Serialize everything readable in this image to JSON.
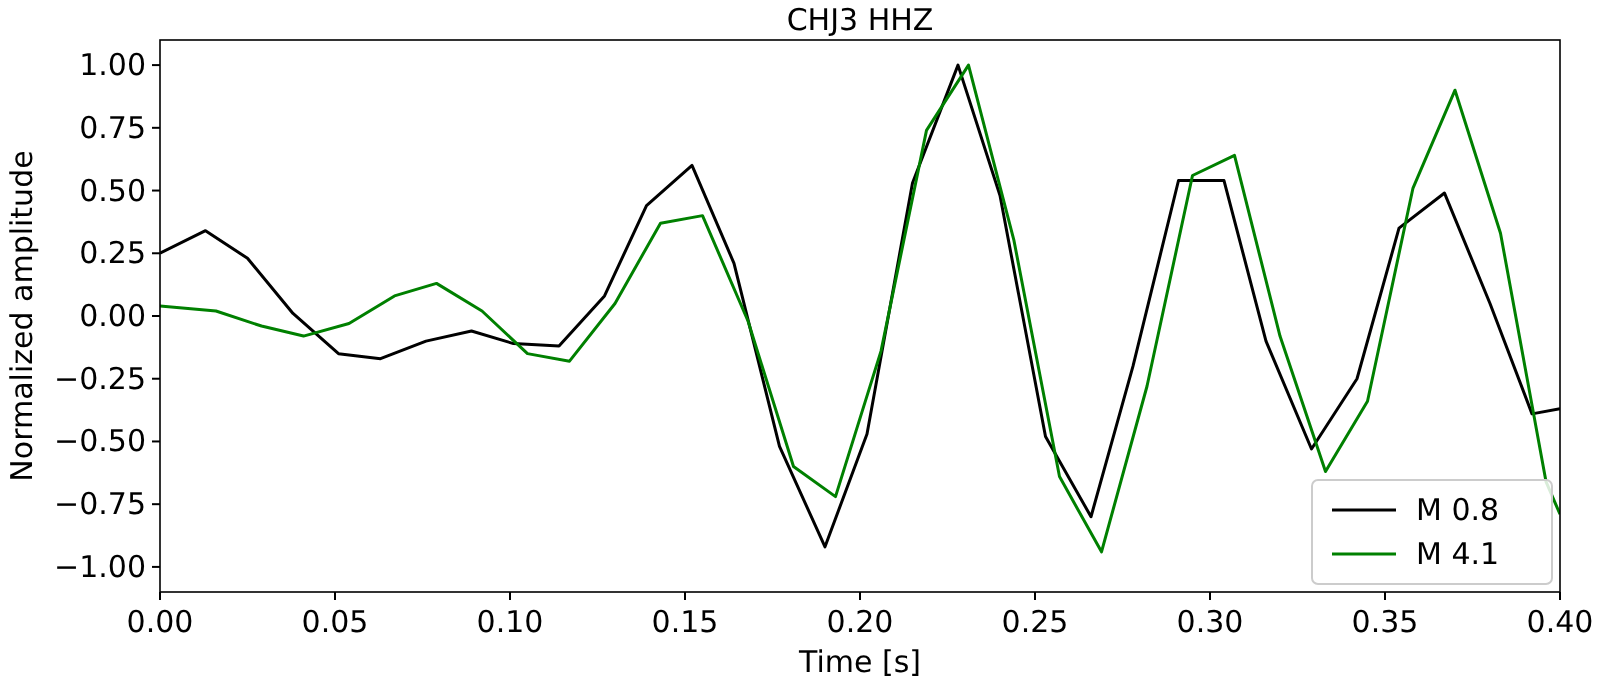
{
  "chart_data": {
    "type": "line",
    "title": "CHJ3 HHZ",
    "xlabel": "Time [s]",
    "ylabel": "Normalized amplitude",
    "xlim": [
      0,
      0.4
    ],
    "ylim": [
      -1.1,
      1.1
    ],
    "xticks": [
      {
        "value": 0,
        "label": "0.00"
      },
      {
        "value": 0.05,
        "label": "0.05"
      },
      {
        "value": 0.1,
        "label": "0.10"
      },
      {
        "value": 0.15,
        "label": "0.15"
      },
      {
        "value": 0.2,
        "label": "0.20"
      },
      {
        "value": 0.25,
        "label": "0.25"
      },
      {
        "value": 0.3,
        "label": "0.30"
      },
      {
        "value": 0.35,
        "label": "0.35"
      },
      {
        "value": 0.4,
        "label": "0.40"
      }
    ],
    "yticks": [
      {
        "value": -1,
        "label": "−1.00"
      },
      {
        "value": -0.75,
        "label": "−0.75"
      },
      {
        "value": -0.5,
        "label": "−0.50"
      },
      {
        "value": -0.25,
        "label": "−0.25"
      },
      {
        "value": 0,
        "label": "0.00"
      },
      {
        "value": 0.25,
        "label": "0.25"
      },
      {
        "value": 0.5,
        "label": "0.50"
      },
      {
        "value": 0.75,
        "label": "0.75"
      },
      {
        "value": 1,
        "label": "1.00"
      }
    ],
    "grid": false,
    "legend": "bottom right",
    "line_style": "solid",
    "marker": "none",
    "series": [
      {
        "name": "M 0.8",
        "color": "#000000",
        "x": [
          0,
          0.013,
          0.025,
          0.038,
          0.051,
          0.063,
          0.076,
          0.089,
          0.101,
          0.114,
          0.127,
          0.139,
          0.152,
          0.164,
          0.177,
          0.19,
          0.202,
          0.215,
          0.228,
          0.24,
          0.253,
          0.266,
          0.278,
          0.291,
          0.304,
          0.316,
          0.329,
          0.342,
          0.354,
          0.367,
          0.38,
          0.392,
          0.4
        ],
        "values": [
          0.25,
          0.34,
          0.23,
          0.01,
          -0.15,
          -0.17,
          -0.1,
          -0.06,
          -0.11,
          -0.12,
          0.08,
          0.44,
          0.6,
          0.21,
          -0.52,
          -0.92,
          -0.47,
          0.53,
          1.0,
          0.48,
          -0.48,
          -0.8,
          -0.2,
          0.54,
          0.54,
          -0.1,
          -0.53,
          -0.25,
          0.35,
          0.49,
          0.05,
          -0.39,
          -0.37
        ]
      },
      {
        "name": "M 4.1",
        "color": "#008000",
        "x": [
          0,
          0.016,
          0.029,
          0.041,
          0.054,
          0.067,
          0.079,
          0.092,
          0.105,
          0.117,
          0.13,
          0.143,
          0.155,
          0.168,
          0.181,
          0.193,
          0.206,
          0.219,
          0.231,
          0.244,
          0.257,
          0.269,
          0.282,
          0.295,
          0.307,
          0.32,
          0.333,
          0.345,
          0.358,
          0.37,
          0.383,
          0.396,
          0.4
        ],
        "values": [
          0.04,
          0.02,
          -0.04,
          -0.08,
          -0.03,
          0.08,
          0.13,
          0.02,
          -0.15,
          -0.18,
          0.05,
          0.37,
          0.4,
          -0.02,
          -0.6,
          -0.72,
          -0.14,
          0.74,
          1.0,
          0.3,
          -0.64,
          -0.94,
          -0.28,
          0.56,
          0.64,
          -0.08,
          -0.62,
          -0.34,
          0.51,
          0.9,
          0.33,
          -0.66,
          -0.79
        ]
      }
    ]
  }
}
